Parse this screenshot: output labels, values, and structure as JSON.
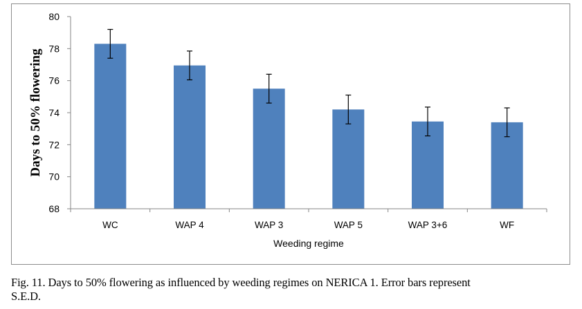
{
  "chart_data": {
    "type": "bar",
    "title": "",
    "xlabel": "Weeding regime",
    "ylabel": "Days to 50% flowering",
    "categories": [
      "WC",
      "WAP 4",
      "WAP 3",
      "WAP 5",
      "WAP 3+6",
      "WF"
    ],
    "values": [
      78.3,
      76.95,
      75.5,
      74.2,
      73.45,
      73.4
    ],
    "error": [
      0.9,
      0.9,
      0.9,
      0.9,
      0.9,
      0.9
    ],
    "ylim": [
      68,
      80
    ],
    "yticks": [
      68,
      70,
      72,
      74,
      76,
      78,
      80
    ],
    "grid": false,
    "legend": "none",
    "bar_color": "#4f81bd"
  },
  "caption": {
    "line1": "Fig. 11. Days to 50% flowering as influenced by weeding regimes on NERICA 1. Error bars represent",
    "line2": "S.E.D."
  }
}
